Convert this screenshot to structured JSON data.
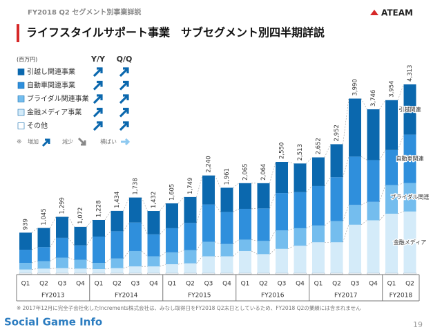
{
  "header": {
    "section": "FY2018 Q2 セグメント別事業詳説",
    "title": "ライフスタイルサポート事業　サブセグメント別四半期詳説",
    "logo": "ATEAM"
  },
  "chart_data": {
    "type": "bar",
    "stacked": true,
    "unit": "(百万円)",
    "fiscal_years": [
      {
        "name": "FY2013",
        "quarters": [
          "Q1",
          "Q2",
          "Q3",
          "Q4"
        ]
      },
      {
        "name": "FY2014",
        "quarters": [
          "Q1",
          "Q2",
          "Q3",
          "Q4"
        ]
      },
      {
        "name": "FY2015",
        "quarters": [
          "Q1",
          "Q2",
          "Q3",
          "Q4"
        ]
      },
      {
        "name": "FY2016",
        "quarters": [
          "Q1",
          "Q2",
          "Q3",
          "Q4"
        ]
      },
      {
        "name": "FY2017",
        "quarters": [
          "Q1",
          "Q2",
          "Q3",
          "Q4"
        ]
      },
      {
        "name": "FY2018",
        "quarters": [
          "Q1",
          "Q2"
        ]
      }
    ],
    "series": [
      {
        "name": "その他",
        "color": "#ffffff",
        "values": [
          20,
          20,
          20,
          20,
          20,
          20,
          20,
          20,
          20,
          20,
          20,
          20,
          20,
          20,
          20,
          20,
          20,
          20,
          20,
          20,
          20,
          20
        ]
      },
      {
        "name": "金融メディア事業",
        "side_label": "金融メディア",
        "color": "#d4ebf9",
        "values": [
          80,
          100,
          110,
          100,
          90,
          110,
          150,
          150,
          200,
          220,
          380,
          380,
          500,
          430,
          550,
          620,
          700,
          700,
          1100,
          1200,
          1350,
          1400
        ]
      },
      {
        "name": "ブライダル関連事業",
        "side_label": "ブライダル関連",
        "color": "#74bdee",
        "values": [
          150,
          170,
          240,
          200,
          140,
          220,
          350,
          230,
          270,
          300,
          330,
          280,
          260,
          300,
          420,
          400,
          380,
          480,
          450,
          420,
          650,
          650
        ]
      },
      {
        "name": "自動車関連事業",
        "side_label": "自動車関連",
        "color": "#2f8fdc",
        "values": [
          300,
          320,
          450,
          330,
          600,
          620,
          650,
          500,
          550,
          620,
          850,
          730,
          700,
          740,
          850,
          820,
          900,
          1000,
          1100,
          950,
          800,
          1100
        ]
      },
      {
        "name": "引越し関連事業",
        "side_label": "引越関連",
        "color": "#0b68ae",
        "values": [
          389,
          435,
          479,
          422,
          378,
          464,
          568,
          532,
          565,
          589,
          660,
          551,
          585,
          574,
          710,
          653,
          652,
          752,
          1320,
          1156,
          1134,
          1143
        ]
      }
    ],
    "totals": {
      "values": [
        939,
        1045,
        1299,
        1072,
        1228,
        1434,
        1738,
        1432,
        1605,
        1749,
        2240,
        1961,
        2065,
        2064,
        2550,
        2513,
        2652,
        2952,
        3990,
        3746,
        3954,
        4313
      ],
      "value_labels": [
        "939",
        "1,045",
        "1,299",
        "1,072",
        "1,228",
        "1,434",
        "1,738",
        "1,432",
        "1,605",
        "1,749",
        "2,240",
        "1,961",
        "2,065",
        "2,064",
        "2,550",
        "2,513",
        "2,652",
        "2,952",
        "3,990",
        "3,746",
        "3,954",
        "4,313"
      ]
    },
    "legend_headers": [
      "Y/Y",
      "Q/Q"
    ],
    "trend_key": {
      "mark": "※",
      "up": "増加",
      "down": "減少",
      "flat": "横ばい"
    }
  },
  "footnote": "※ 2017年12月に完全子会社化したIncrements株式会社は、みなし取得日をFY2018 Q2末日としているため、FY2018 Q2の業績には含まれません",
  "watermark": "Social Game Info",
  "page_number": "19"
}
